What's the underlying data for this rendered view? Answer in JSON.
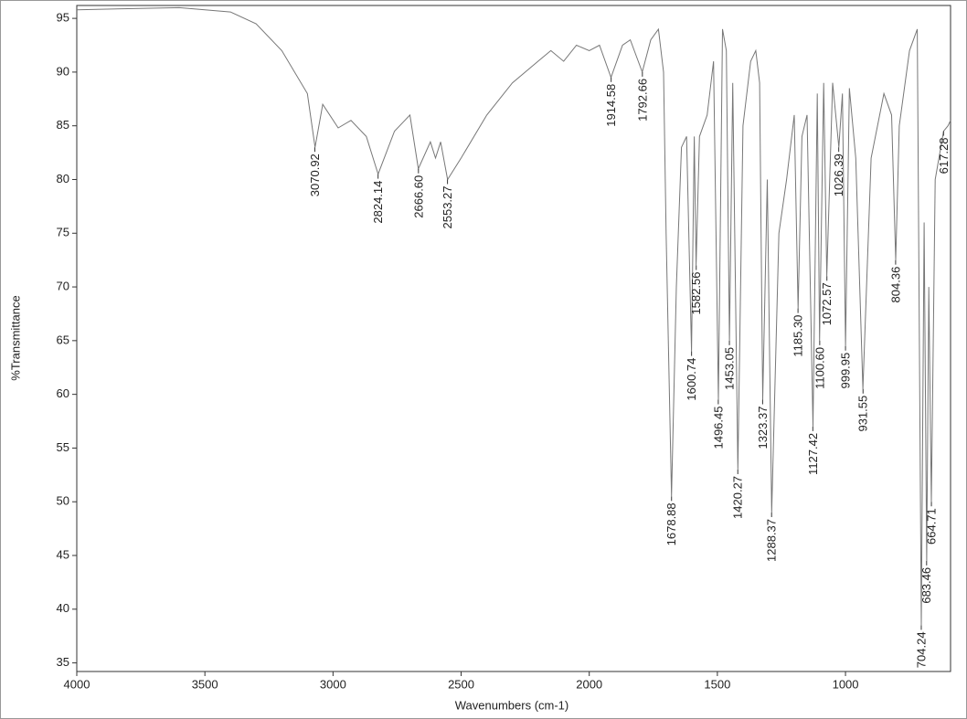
{
  "chart_data": {
    "type": "line",
    "xlabel": "Wavenumbers (cm-1)",
    "ylabel": "%Transmittance",
    "color": "#777777",
    "xlim": [
      4000,
      590
    ],
    "ylim": [
      34.2,
      96.2
    ],
    "xticks": [
      4000,
      3500,
      3000,
      2500,
      2000,
      1500,
      1000
    ],
    "yticks": [
      35,
      40,
      45,
      50,
      55,
      60,
      65,
      70,
      75,
      80,
      85,
      90,
      95
    ],
    "x": [
      4000,
      3800,
      3600,
      3400,
      3300,
      3200,
      3100,
      3070,
      3040,
      2980,
      2930,
      2870,
      2824,
      2760,
      2720,
      2700,
      2667,
      2620,
      2600,
      2580,
      2553,
      2500,
      2400,
      2300,
      2200,
      2150,
      2100,
      2050,
      2000,
      1960,
      1915,
      1870,
      1840,
      1793,
      1760,
      1730,
      1710,
      1700,
      1679,
      1660,
      1640,
      1620,
      1601,
      1590,
      1583,
      1570,
      1540,
      1515,
      1496,
      1480,
      1465,
      1453,
      1440,
      1420,
      1400,
      1370,
      1350,
      1335,
      1323,
      1305,
      1288,
      1260,
      1230,
      1200,
      1185,
      1170,
      1150,
      1127,
      1110,
      1101,
      1085,
      1073,
      1050,
      1026,
      1012,
      1000,
      985,
      960,
      932,
      900,
      850,
      820,
      804,
      790,
      750,
      720,
      704,
      693,
      683,
      675,
      665,
      650,
      617,
      600,
      590
    ],
    "values": [
      95.8,
      95.9,
      96.0,
      95.6,
      94.5,
      92,
      88,
      83,
      87,
      84.8,
      85.5,
      84,
      80.5,
      84.5,
      85.5,
      86,
      81,
      83.5,
      82,
      83.5,
      80,
      82,
      86,
      89,
      91,
      92,
      91,
      92.5,
      92,
      92.5,
      89.5,
      92.5,
      93,
      90,
      93,
      94,
      90,
      75,
      50.5,
      70,
      83,
      84,
      64,
      84,
      72,
      84,
      86,
      91,
      59.5,
      94,
      92,
      65,
      89,
      53,
      85,
      91,
      92,
      89,
      59.5,
      80,
      49,
      75,
      80,
      86,
      68,
      84,
      86,
      57,
      88,
      65,
      89,
      71,
      89,
      83,
      88,
      64.5,
      88.5,
      82,
      60.5,
      82,
      88,
      86,
      72.5,
      85,
      92,
      94,
      38.5,
      76,
      44.5,
      70,
      50,
      80,
      84.5,
      85,
      85.5
    ],
    "annotations": [
      {
        "x": 3070.92,
        "y": 83,
        "label": "3070.92"
      },
      {
        "x": 2824.14,
        "y": 80.5,
        "label": "2824.14"
      },
      {
        "x": 2666.6,
        "y": 81,
        "label": "2666.60"
      },
      {
        "x": 2553.27,
        "y": 80,
        "label": "2553.27"
      },
      {
        "x": 1914.58,
        "y": 89.5,
        "label": "1914.58"
      },
      {
        "x": 1792.66,
        "y": 90,
        "label": "1792.66"
      },
      {
        "x": 1678.88,
        "y": 50.5,
        "label": "1678.88"
      },
      {
        "x": 1600.74,
        "y": 64,
        "label": "1600.74"
      },
      {
        "x": 1582.56,
        "y": 72,
        "label": "1582.56"
      },
      {
        "x": 1496.45,
        "y": 59.5,
        "label": "1496.45"
      },
      {
        "x": 1453.05,
        "y": 65,
        "label": "1453.05"
      },
      {
        "x": 1420.27,
        "y": 53,
        "label": "1420.27"
      },
      {
        "x": 1323.37,
        "y": 59.5,
        "label": "1323.37"
      },
      {
        "x": 1288.37,
        "y": 49,
        "label": "1288.37"
      },
      {
        "x": 1185.3,
        "y": 68,
        "label": "1185.30"
      },
      {
        "x": 1127.42,
        "y": 57,
        "label": "1127.42"
      },
      {
        "x": 1100.6,
        "y": 65,
        "label": "1100.60"
      },
      {
        "x": 1072.57,
        "y": 71,
        "label": "1072.57"
      },
      {
        "x": 1026.39,
        "y": 83,
        "label": "1026.39"
      },
      {
        "x": 999.95,
        "y": 64.5,
        "label": "999.95"
      },
      {
        "x": 931.55,
        "y": 60.5,
        "label": "931.55"
      },
      {
        "x": 804.36,
        "y": 72.5,
        "label": "804.36"
      },
      {
        "x": 704.24,
        "y": 38.5,
        "label": "704.24"
      },
      {
        "x": 683.46,
        "y": 44.5,
        "label": "683.46"
      },
      {
        "x": 664.71,
        "y": 50,
        "label": "664.71"
      },
      {
        "x": 617.28,
        "y": 84.5,
        "label": "617.28"
      }
    ]
  }
}
